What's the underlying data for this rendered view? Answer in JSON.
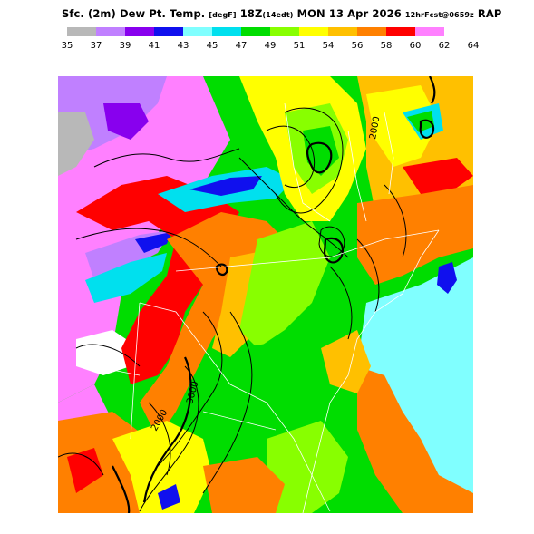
{
  "title": {
    "prefix": "Sfc. (2m) Dew Pt. Temp.",
    "unit": "[degF]",
    "valid": "18Z",
    "valid_detail": "(14edt)",
    "date": "MON 13 Apr 2026",
    "forecast": "12hrFcst@0659z",
    "model": "RAP"
  },
  "legend": {
    "levels": [
      "35",
      "37",
      "39",
      "41",
      "43",
      "45",
      "47",
      "49",
      "51",
      "54",
      "56",
      "58",
      "60",
      "62",
      "64"
    ],
    "colors": [
      "#b8b8b8",
      "#c080ff",
      "#8800ee",
      "#1010ee",
      "#80ffff",
      "#00e0ee",
      "#00dd00",
      "#88ff00",
      "#ffff00",
      "#ffc000",
      "#ff8000",
      "#ff0000",
      "#ff80ff",
      "#ffffff"
    ]
  },
  "map": {
    "contour_labels": [
      "3000",
      "2000",
      "2000"
    ],
    "palette": {
      "grey": "#b8b8b8",
      "lilac": "#c080ff",
      "purple": "#8800ee",
      "blue": "#1010ee",
      "cyan_light": "#80ffff",
      "cyan": "#00e0ee",
      "green": "#00dd00",
      "lime": "#88ff00",
      "yellow": "#ffff00",
      "gold": "#ffc000",
      "orange": "#ff8000",
      "red": "#ff0000",
      "pink": "#ff80ff",
      "line": "#000000",
      "border": "#ffffff"
    }
  }
}
